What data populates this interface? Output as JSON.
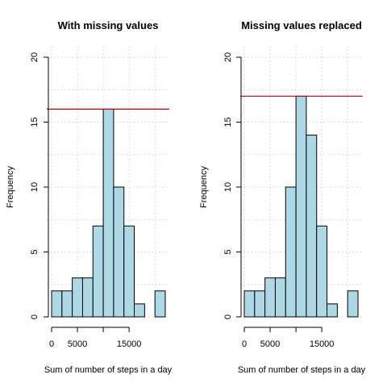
{
  "chart_data": [
    {
      "type": "bar",
      "title": "With missing values",
      "xlabel": "Sum of number of steps in a day",
      "ylabel": "Frequency",
      "bin_edges": [
        0,
        2000,
        4000,
        6000,
        8000,
        10000,
        12000,
        14000,
        16000,
        18000,
        20000,
        22000
      ],
      "values": [
        2,
        2,
        3,
        3,
        7,
        16,
        10,
        7,
        1,
        0,
        2
      ],
      "xlim": [
        0,
        22000
      ],
      "ylim": [
        0,
        20
      ],
      "xticks": [
        0,
        5000,
        15000
      ],
      "xtick_labels": [
        "0",
        "5000",
        "15000"
      ],
      "yticks": [
        0,
        5,
        10,
        15,
        20
      ],
      "ytick_labels": [
        "0",
        "5",
        "10",
        "15",
        "20"
      ],
      "grid": true,
      "hline": 16,
      "bar_color": "#add8e6",
      "hline_color": "#cc0000"
    },
    {
      "type": "bar",
      "title": "Missing values replaced",
      "xlabel": "Sum of number of steps in a day",
      "ylabel": "Frequency",
      "bin_edges": [
        0,
        2000,
        4000,
        6000,
        8000,
        10000,
        12000,
        14000,
        16000,
        18000,
        20000,
        22000
      ],
      "values": [
        2,
        2,
        3,
        3,
        10,
        17,
        14,
        7,
        1,
        0,
        2
      ],
      "xlim": [
        0,
        22000
      ],
      "ylim": [
        0,
        20
      ],
      "xticks": [
        0,
        5000,
        15000
      ],
      "xtick_labels": [
        "0",
        "5000",
        "15000"
      ],
      "yticks": [
        0,
        5,
        10,
        15,
        20
      ],
      "ytick_labels": [
        "0",
        "5",
        "10",
        "15",
        "20"
      ],
      "grid": true,
      "hline": 17,
      "bar_color": "#add8e6",
      "hline_color": "#cc0000"
    }
  ]
}
